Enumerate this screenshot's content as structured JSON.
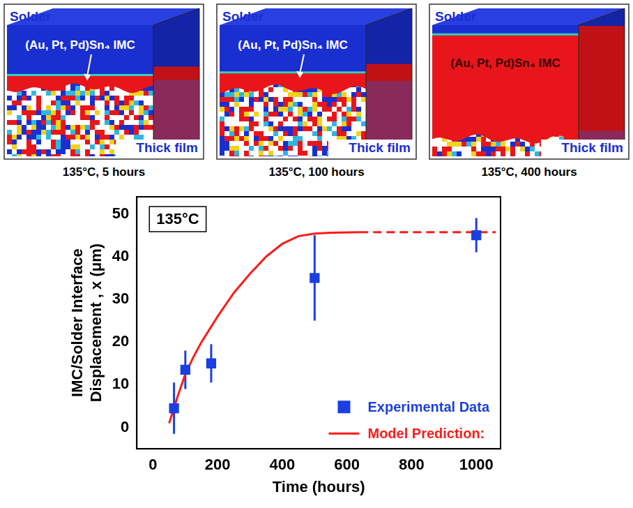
{
  "panels": [
    {
      "solder_label": "Solder",
      "imc_label": "(Au, Pt, Pd)Sn₄ IMC",
      "substrate_label": "Thick film",
      "caption": "135°C, 5 hours"
    },
    {
      "solder_label": "Solder",
      "imc_label": "(Au, Pt, Pd)Sn₄ IMC",
      "substrate_label": "Thick film",
      "caption": "135°C, 100 hours"
    },
    {
      "solder_label": "Solder",
      "imc_label": "(Au, Pt, Pd)Sn₄ IMC",
      "substrate_label": "Thick film",
      "caption": "135°C, 400 hours"
    }
  ],
  "chart_data": {
    "type": "scatter",
    "annotation": "135°C",
    "xlabel": "Time (hours)",
    "ylabel": [
      "IMC/Solder Interface",
      "Displacement , x (μm)"
    ],
    "xlim": [
      -50,
      1075
    ],
    "xticks": [
      0,
      200,
      400,
      600,
      800,
      1000
    ],
    "ylim": [
      -5,
      54
    ],
    "yticks": [
      0,
      10,
      20,
      30,
      40,
      50
    ],
    "grid": false,
    "legend": "lower right",
    "series": [
      {
        "name": "Experimental Data",
        "type": "scatter",
        "marker": "square",
        "color": "#1b3fe0",
        "x": [
          65,
          100,
          180,
          500,
          1000
        ],
        "values": [
          4.5,
          13.5,
          15,
          35,
          45
        ],
        "error": [
          6,
          4.5,
          4.5,
          10,
          4
        ]
      },
      {
        "name": "Model Prediction:",
        "type": "line",
        "line_style": "solid",
        "color": "#ff1a1a",
        "x": [
          50,
          75,
          100,
          125,
          150,
          200,
          250,
          300,
          350,
          400,
          450,
          500,
          550,
          640
        ],
        "values": [
          1,
          7,
          12.5,
          16.5,
          20,
          26,
          31.5,
          36,
          40,
          43,
          44.8,
          45.4,
          45.6,
          45.7
        ],
        "extension": {
          "x": [
            640,
            1060
          ],
          "values": [
            45.7,
            45.7
          ],
          "line_style": "dashed"
        }
      }
    ]
  }
}
